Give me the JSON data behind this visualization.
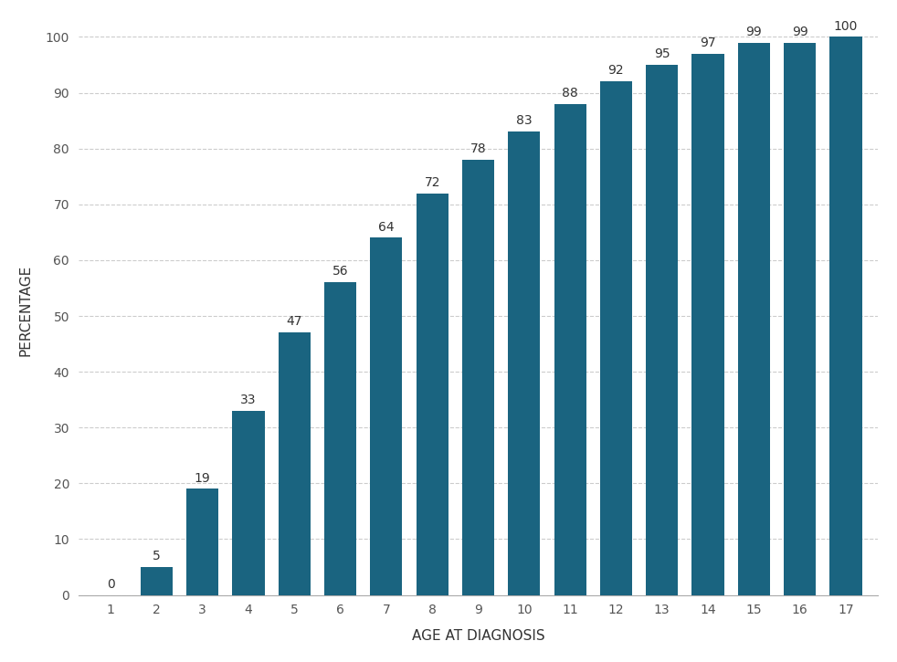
{
  "ages": [
    1,
    2,
    3,
    4,
    5,
    6,
    7,
    8,
    9,
    10,
    11,
    12,
    13,
    14,
    15,
    16,
    17
  ],
  "values": [
    0,
    5,
    19,
    33,
    47,
    56,
    64,
    72,
    78,
    83,
    88,
    92,
    95,
    97,
    99,
    99,
    100
  ],
  "bar_color": "#1a6480",
  "xlabel": "AGE AT DIAGNOSIS",
  "ylabel": "PERCENTAGE",
  "ylim": [
    0,
    102
  ],
  "yticks": [
    0,
    10,
    20,
    30,
    40,
    50,
    60,
    70,
    80,
    90,
    100
  ],
  "background_color": "#ffffff",
  "label_fontsize": 11,
  "tick_fontsize": 10,
  "annotation_fontsize": 10,
  "bar_width": 0.7
}
